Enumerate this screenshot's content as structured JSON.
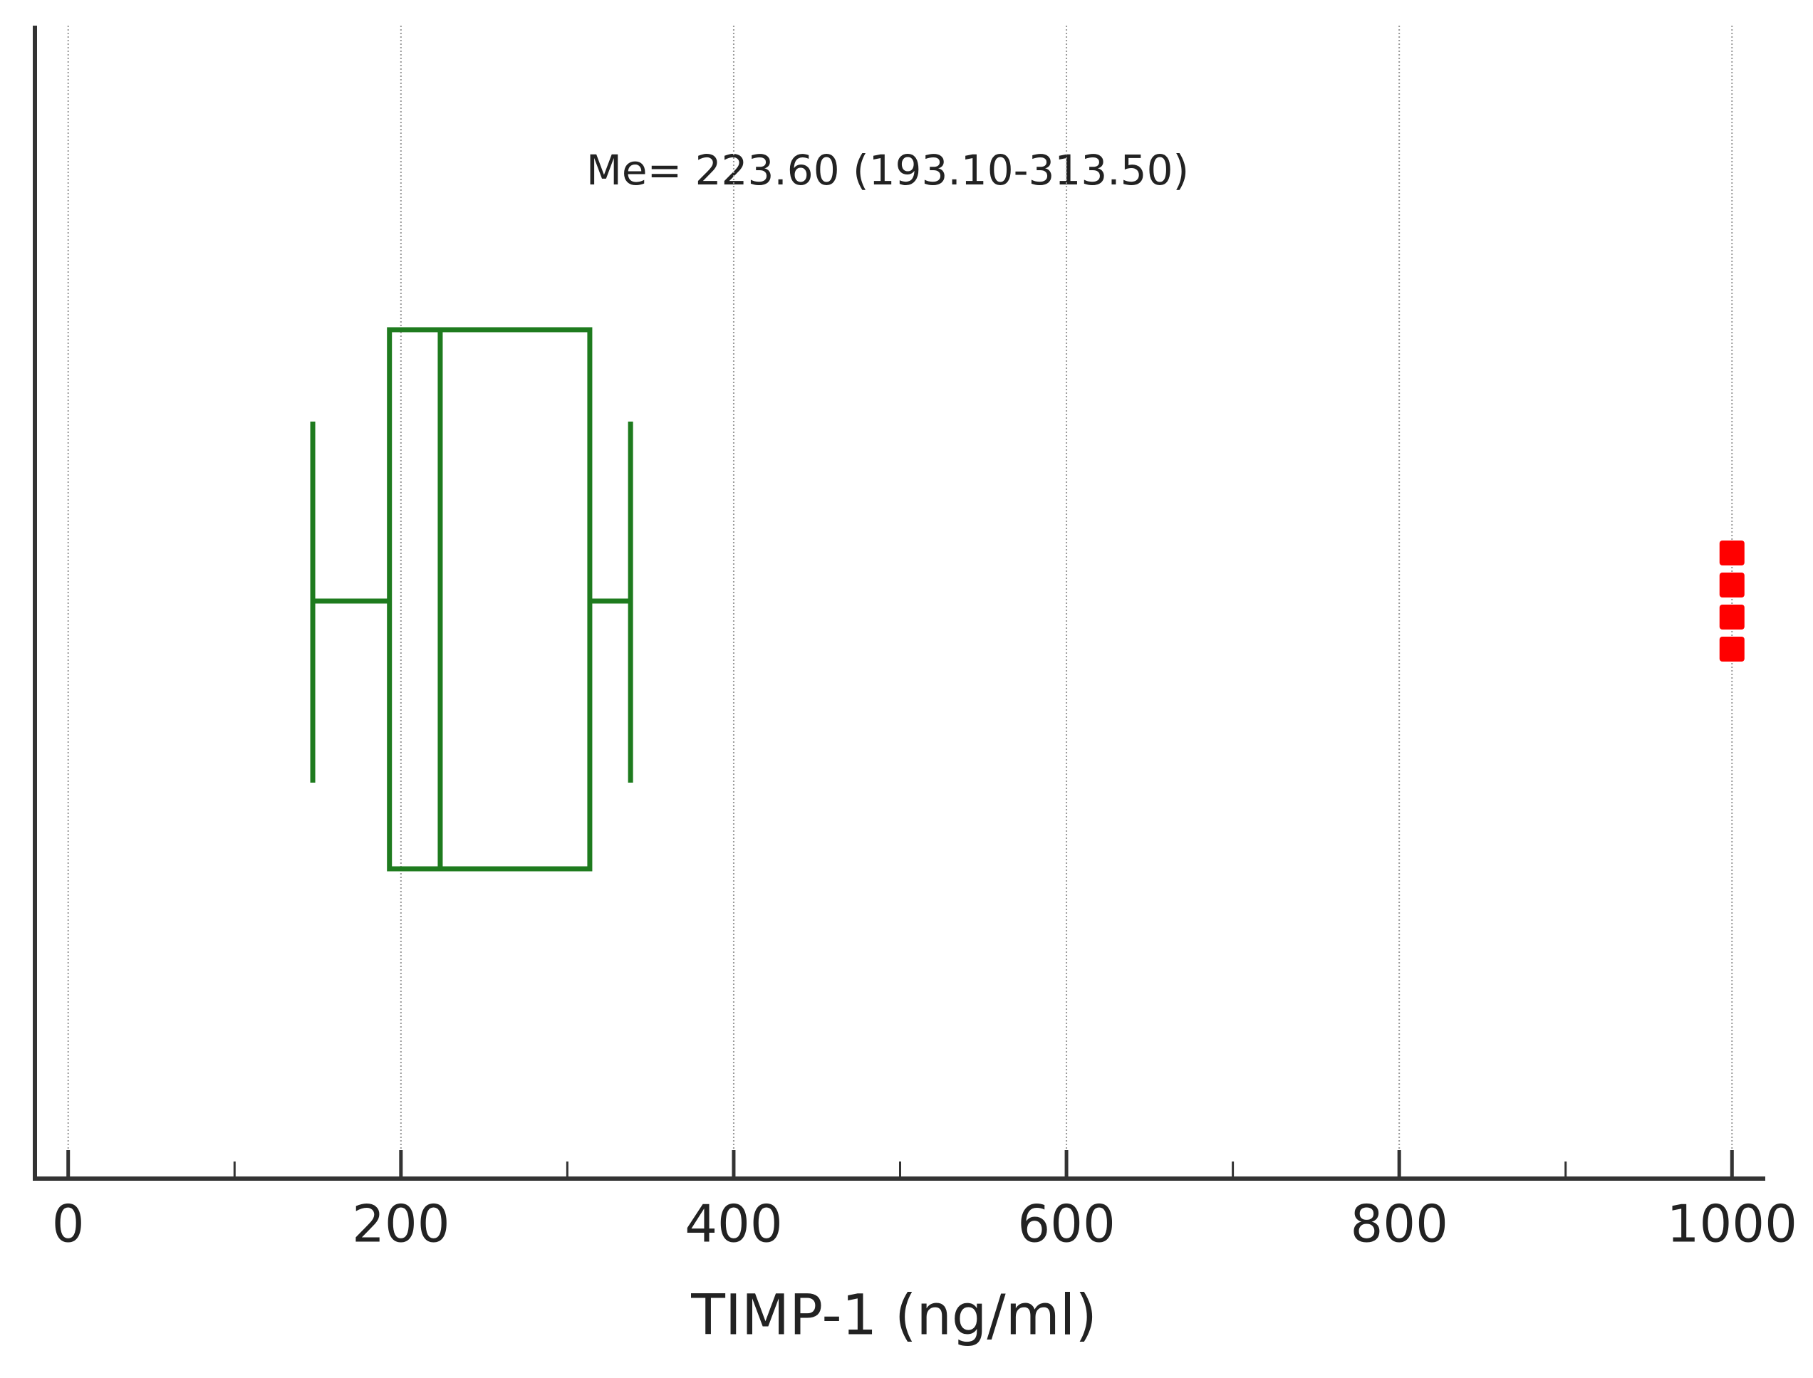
{
  "chart_data": {
    "type": "box",
    "annotation": "Me= 223.60 (193.10-313.50)",
    "x_label": "TIMP-1 (ng/ml)",
    "box": {
      "min": 147,
      "q1": 193.1,
      "median": 223.6,
      "q3": 313.5,
      "max": 338,
      "color": "#1e7b1e"
    },
    "outliers": [
      1000,
      1000,
      1000,
      1000
    ],
    "outlier_color": "#ff0000",
    "xlim": [
      -20,
      1020
    ],
    "xticks": [
      0,
      200,
      400,
      600,
      800,
      1000
    ],
    "xminorticks": [
      100,
      300,
      500,
      700,
      900
    ],
    "grid": true
  }
}
